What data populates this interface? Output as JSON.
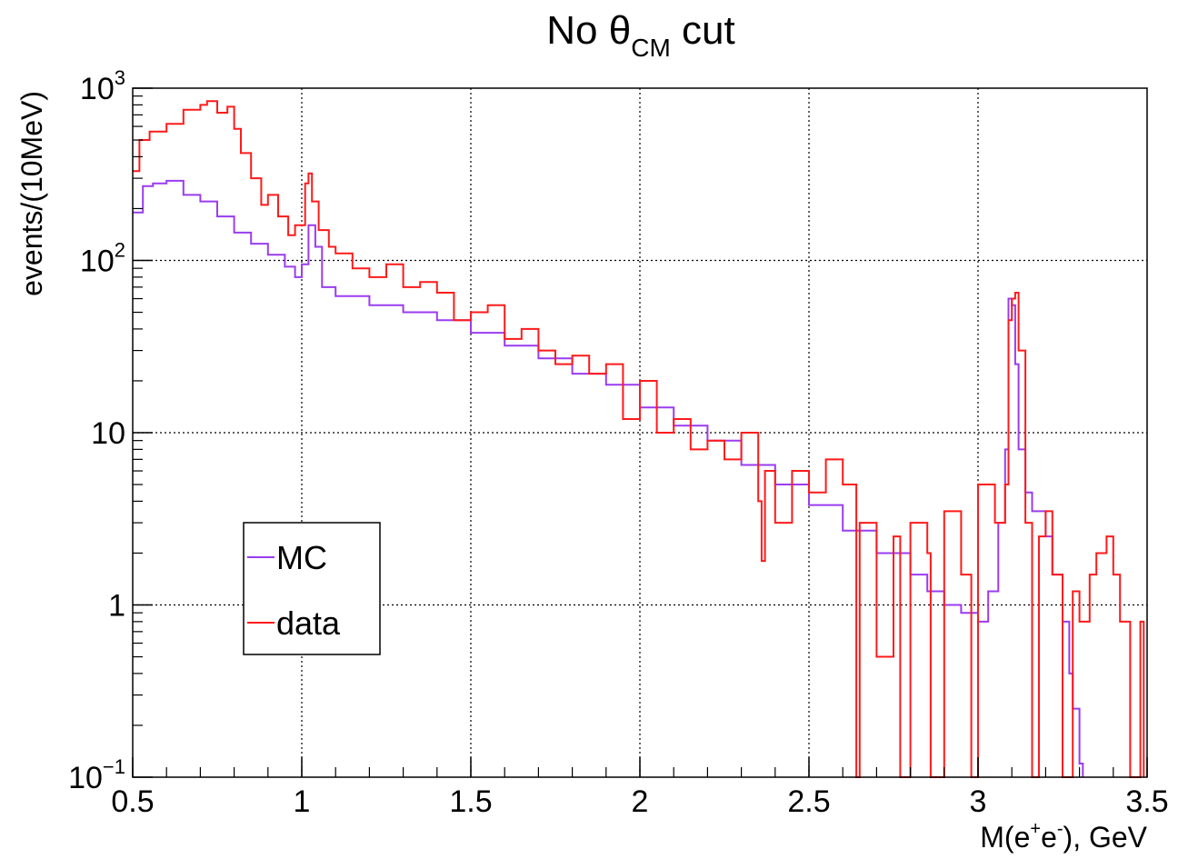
{
  "chart_data": {
    "type": "line",
    "title": {
      "main": "No θ",
      "sub": "CM",
      "rest": " cut"
    },
    "xlabel": {
      "pre": "M(e",
      "sup1": "+",
      "mid": "e",
      "sup2": "-",
      "post": "), GeV"
    },
    "ylabel": "events/(10MeV)",
    "xlim": [
      0.5,
      3.5
    ],
    "ylim": [
      0.1,
      1000
    ],
    "yscale": "log",
    "grid": true,
    "legend_position": "lower-left",
    "x_ticks": [
      "0.5",
      "1",
      "1.5",
      "2",
      "2.5",
      "3",
      "3.5"
    ],
    "y_ticks": [
      {
        "value": 1000,
        "base": "10",
        "exp": "3"
      },
      {
        "value": 100,
        "base": "10",
        "exp": "2"
      },
      {
        "value": 10,
        "base": "10",
        "exp": ""
      },
      {
        "value": 1,
        "base": "1",
        "exp": ""
      },
      {
        "value": 0.1,
        "base": "10",
        "exp": "−1"
      }
    ],
    "series": [
      {
        "name": "MC",
        "color": "#9a3cf0",
        "points": [
          [
            0.5,
            190
          ],
          [
            0.53,
            270
          ],
          [
            0.56,
            280
          ],
          [
            0.6,
            290
          ],
          [
            0.65,
            240
          ],
          [
            0.7,
            220
          ],
          [
            0.75,
            180
          ],
          [
            0.8,
            145
          ],
          [
            0.85,
            125
          ],
          [
            0.9,
            108
          ],
          [
            0.95,
            92
          ],
          [
            0.98,
            80
          ],
          [
            1.0,
            95
          ],
          [
            1.02,
            160
          ],
          [
            1.04,
            120
          ],
          [
            1.06,
            70
          ],
          [
            1.1,
            62
          ],
          [
            1.2,
            55
          ],
          [
            1.3,
            50
          ],
          [
            1.4,
            45
          ],
          [
            1.5,
            38
          ],
          [
            1.6,
            32
          ],
          [
            1.7,
            27
          ],
          [
            1.8,
            22
          ],
          [
            1.9,
            19
          ],
          [
            2.0,
            14
          ],
          [
            2.1,
            11
          ],
          [
            2.2,
            9
          ],
          [
            2.3,
            6.5
          ],
          [
            2.4,
            5
          ],
          [
            2.5,
            3.8
          ],
          [
            2.6,
            2.7
          ],
          [
            2.7,
            2.0
          ],
          [
            2.8,
            1.5
          ],
          [
            2.85,
            1.2
          ],
          [
            2.9,
            1.0
          ],
          [
            2.95,
            0.9
          ],
          [
            3.0,
            0.8
          ],
          [
            3.03,
            1.2
          ],
          [
            3.06,
            3
          ],
          [
            3.08,
            8
          ],
          [
            3.09,
            60
          ],
          [
            3.1,
            55
          ],
          [
            3.11,
            25
          ],
          [
            3.12,
            8
          ],
          [
            3.14,
            4.5
          ],
          [
            3.16,
            3.5
          ],
          [
            3.2,
            2.5
          ],
          [
            3.22,
            1.5
          ],
          [
            3.25,
            0.8
          ],
          [
            3.27,
            0.4
          ],
          [
            3.28,
            0.25
          ],
          [
            3.3,
            0.12
          ],
          [
            3.31,
            0.1
          ]
        ]
      },
      {
        "name": "data",
        "color": "#ff1a1a",
        "points": [
          [
            0.5,
            330
          ],
          [
            0.52,
            500
          ],
          [
            0.55,
            560
          ],
          [
            0.6,
            620
          ],
          [
            0.65,
            750
          ],
          [
            0.7,
            800
          ],
          [
            0.72,
            840
          ],
          [
            0.75,
            720
          ],
          [
            0.78,
            780
          ],
          [
            0.8,
            580
          ],
          [
            0.82,
            420
          ],
          [
            0.85,
            300
          ],
          [
            0.88,
            210
          ],
          [
            0.9,
            240
          ],
          [
            0.93,
            180
          ],
          [
            0.96,
            140
          ],
          [
            0.98,
            160
          ],
          [
            1.0,
            160
          ],
          [
            1.01,
            280
          ],
          [
            1.02,
            320
          ],
          [
            1.03,
            220
          ],
          [
            1.05,
            150
          ],
          [
            1.08,
            120
          ],
          [
            1.1,
            110
          ],
          [
            1.15,
            90
          ],
          [
            1.2,
            80
          ],
          [
            1.25,
            95
          ],
          [
            1.3,
            70
          ],
          [
            1.35,
            75
          ],
          [
            1.4,
            65
          ],
          [
            1.45,
            45
          ],
          [
            1.5,
            50
          ],
          [
            1.55,
            55
          ],
          [
            1.6,
            35
          ],
          [
            1.65,
            40
          ],
          [
            1.7,
            30
          ],
          [
            1.75,
            25
          ],
          [
            1.8,
            28
          ],
          [
            1.85,
            22
          ],
          [
            1.9,
            25
          ],
          [
            1.95,
            12
          ],
          [
            2.0,
            20
          ],
          [
            2.05,
            10
          ],
          [
            2.1,
            12
          ],
          [
            2.15,
            8
          ],
          [
            2.2,
            9
          ],
          [
            2.25,
            7
          ],
          [
            2.3,
            10
          ],
          [
            2.35,
            4
          ],
          [
            2.36,
            1.8
          ],
          [
            2.37,
            6
          ],
          [
            2.4,
            3
          ],
          [
            2.45,
            6
          ],
          [
            2.5,
            4.5
          ],
          [
            2.55,
            7
          ],
          [
            2.6,
            5
          ],
          [
            2.64,
            0.1
          ],
          [
            2.65,
            3
          ],
          [
            2.7,
            0.5
          ],
          [
            2.75,
            2.5
          ],
          [
            2.77,
            0.1
          ],
          [
            2.8,
            3
          ],
          [
            2.85,
            2
          ],
          [
            2.86,
            0.1
          ],
          [
            2.9,
            3.5
          ],
          [
            2.95,
            1.5
          ],
          [
            2.98,
            0.1
          ],
          [
            3.0,
            5
          ],
          [
            3.05,
            3
          ],
          [
            3.08,
            5
          ],
          [
            3.09,
            45
          ],
          [
            3.1,
            60
          ],
          [
            3.11,
            65
          ],
          [
            3.12,
            30
          ],
          [
            3.14,
            3
          ],
          [
            3.16,
            0.1
          ],
          [
            3.18,
            2.5
          ],
          [
            3.2,
            3.5
          ],
          [
            3.22,
            1.5
          ],
          [
            3.25,
            0.1
          ],
          [
            3.28,
            1.2
          ],
          [
            3.3,
            0.8
          ],
          [
            3.33,
            1.5
          ],
          [
            3.35,
            2
          ],
          [
            3.38,
            2.5
          ],
          [
            3.4,
            1.5
          ],
          [
            3.42,
            0.8
          ],
          [
            3.45,
            0.1
          ],
          [
            3.48,
            0.8
          ],
          [
            3.49,
            0.1
          ]
        ]
      }
    ]
  }
}
